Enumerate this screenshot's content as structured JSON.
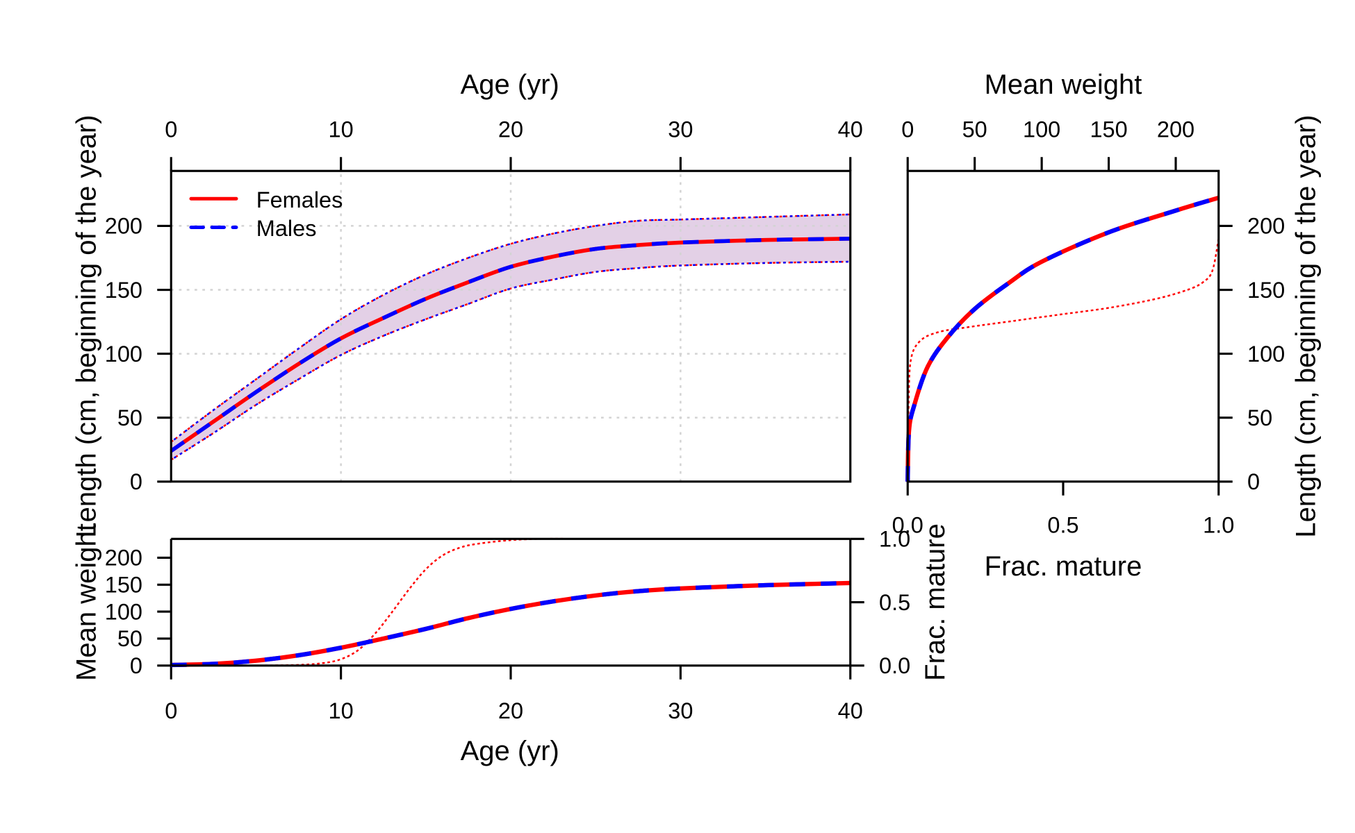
{
  "chart_data": [
    {
      "panel": "length-at-age",
      "type": "line",
      "xlabel": "Age (yr)",
      "ylabel": "Length (cm, beginning of the year)",
      "xlim": [
        0,
        40
      ],
      "ylim": [
        0,
        243
      ],
      "x_ticks": [
        "0",
        "10",
        "20",
        "30",
        "40"
      ],
      "y_ticks": [
        "0",
        "50",
        "100",
        "150",
        "200"
      ],
      "grid": true,
      "legend": {
        "placement": "top-left",
        "entries": [
          "Females",
          "Males"
        ]
      },
      "x": [
        0,
        2.5,
        5,
        7.5,
        10,
        12.5,
        15,
        17.5,
        20,
        22.5,
        25,
        27.5,
        30,
        35,
        40
      ],
      "series": [
        {
          "name": "Females",
          "color": "#ff0000",
          "style": "solid",
          "mean": [
            24,
            47,
            70,
            92,
            112,
            128,
            143,
            156,
            168,
            176,
            182,
            185,
            187,
            189,
            190
          ],
          "upper": [
            31,
            56,
            80,
            104,
            127,
            146,
            162,
            175,
            186,
            194,
            200,
            204,
            205,
            207,
            209
          ],
          "lower": [
            17,
            38,
            60,
            80,
            99,
            114,
            127,
            139,
            151,
            158,
            164,
            167,
            169,
            171,
            172
          ]
        },
        {
          "name": "Males",
          "color": "#0000ff",
          "style": "dashed",
          "mean": [
            24,
            47,
            70,
            92,
            112,
            128,
            143,
            156,
            168,
            176,
            182,
            185,
            187,
            189,
            190
          ],
          "upper": [
            31,
            56,
            80,
            104,
            127,
            146,
            162,
            175,
            186,
            194,
            200,
            204,
            205,
            207,
            209
          ],
          "lower": [
            17,
            38,
            60,
            80,
            99,
            114,
            127,
            139,
            151,
            158,
            164,
            167,
            169,
            171,
            172
          ]
        }
      ],
      "band_color": "#e3d0e6"
    },
    {
      "panel": "length-vs-weight-and-maturity",
      "type": "line",
      "top_xlabel": "Mean weight",
      "bottom_xlabel": "Frac. mature",
      "ylabel": "Length (cm, beginning of the year)",
      "top_xlim": [
        0,
        232
      ],
      "bottom_xlim": [
        0,
        1
      ],
      "ylim": [
        0,
        243
      ],
      "top_x_ticks": [
        "0",
        "50",
        "100",
        "150",
        "200"
      ],
      "bottom_x_ticks": [
        "0.0",
        "0.5",
        "1.0"
      ],
      "y_ticks": [
        "0",
        "50",
        "100",
        "150",
        "200"
      ],
      "weight_length": {
        "weight": [
          0,
          1,
          5,
          15,
          30,
          50,
          75,
          100,
          150,
          200,
          232
        ],
        "length": [
          0,
          40,
          60,
          90,
          113,
          135,
          155,
          172,
          195,
          212,
          222
        ]
      },
      "maturity_length": {
        "frac_mature": [
          0,
          0.003,
          0.01,
          0.04,
          0.1,
          0.2,
          0.35,
          0.5,
          0.65,
          0.8,
          0.9,
          0.95,
          0.98,
          1.0
        ],
        "length": [
          0,
          60,
          95,
          110,
          117,
          121,
          126,
          131,
          136,
          143,
          150,
          156,
          165,
          190
        ]
      }
    },
    {
      "panel": "weight-and-maturity-at-age",
      "type": "line",
      "xlabel": "Age (yr)",
      "ylabel": "Mean weight",
      "y2label": "Frac. mature",
      "xlim": [
        0,
        40
      ],
      "ylim": [
        0,
        235
      ],
      "y2lim": [
        0,
        1
      ],
      "x_ticks": [
        "0",
        "10",
        "20",
        "30",
        "40"
      ],
      "y_ticks": [
        "0",
        "50",
        "100",
        "150",
        "200"
      ],
      "y2_ticks": [
        "0.0",
        "0.5",
        "1.0"
      ],
      "weight": {
        "age": [
          0,
          2.5,
          5,
          7.5,
          10,
          12.5,
          15,
          17.5,
          20,
          22.5,
          25,
          27.5,
          30,
          35,
          40
        ],
        "value": [
          1,
          3,
          9,
          19,
          33,
          50,
          68,
          88,
          105,
          119,
          130,
          138,
          143,
          149,
          153
        ]
      },
      "maturity": {
        "age": [
          0,
          5,
          7.5,
          9,
          10,
          11,
          12,
          13,
          14,
          15,
          16,
          17,
          18,
          20,
          22,
          25,
          40
        ],
        "value": [
          0,
          0,
          0.005,
          0.02,
          0.05,
          0.12,
          0.25,
          0.42,
          0.6,
          0.76,
          0.87,
          0.93,
          0.96,
          0.99,
          1,
          1,
          1
        ]
      }
    }
  ]
}
